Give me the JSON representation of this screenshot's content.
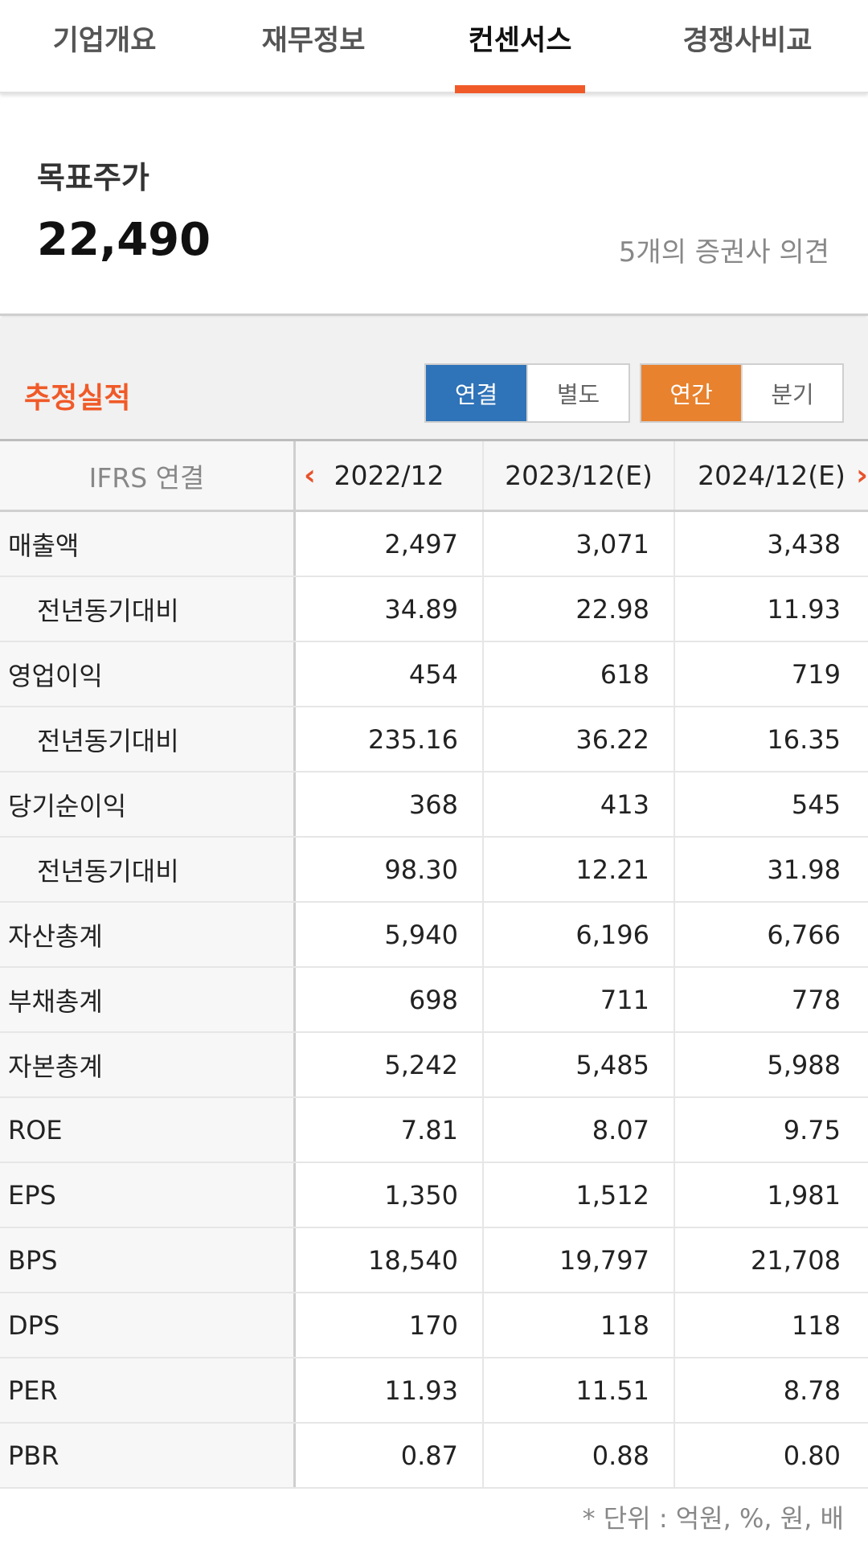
{
  "tabs": [
    {
      "label": "기업개요"
    },
    {
      "label": "재무정보"
    },
    {
      "label": "컨센서스",
      "active": true
    },
    {
      "label": "경쟁사비교"
    }
  ],
  "target": {
    "label": "목표주가",
    "value": "22,490",
    "opinion": "5개의 증권사 의견"
  },
  "estimate": {
    "title": "추정실적",
    "toggle_basis": [
      "연결",
      "별도"
    ],
    "toggle_period": [
      "연간",
      "분기"
    ],
    "selected_basis": "연결",
    "selected_period": "연간"
  },
  "table": {
    "header": {
      "label": "IFRS 연결",
      "cols": [
        "2022/12",
        "2023/12(E)",
        "2024/12(E)"
      ]
    },
    "rows": [
      {
        "label": "매출액",
        "values": [
          "2,497",
          "3,071",
          "3,438"
        ]
      },
      {
        "label": "전년동기대비",
        "values": [
          "34.89",
          "22.98",
          "11.93"
        ]
      },
      {
        "label": "영업이익",
        "values": [
          "454",
          "618",
          "719"
        ]
      },
      {
        "label": "전년동기대비",
        "values": [
          "235.16",
          "36.22",
          "16.35"
        ]
      },
      {
        "label": "당기순이익",
        "values": [
          "368",
          "413",
          "545"
        ]
      },
      {
        "label": "전년동기대비",
        "values": [
          "98.30",
          "12.21",
          "31.98"
        ]
      },
      {
        "label": "자산총계",
        "values": [
          "5,940",
          "6,196",
          "6,766"
        ]
      },
      {
        "label": "부채총계",
        "values": [
          "698",
          "711",
          "778"
        ]
      },
      {
        "label": "자본총계",
        "values": [
          "5,242",
          "5,485",
          "5,988"
        ]
      },
      {
        "label": "ROE",
        "values": [
          "7.81",
          "8.07",
          "9.75"
        ]
      },
      {
        "label": "EPS",
        "values": [
          "1,350",
          "1,512",
          "1,981"
        ]
      },
      {
        "label": "BPS",
        "values": [
          "18,540",
          "19,797",
          "21,708"
        ]
      },
      {
        "label": "DPS",
        "values": [
          "170",
          "118",
          "118"
        ]
      },
      {
        "label": "PER",
        "values": [
          "11.93",
          "11.51",
          "8.78"
        ]
      },
      {
        "label": "PBR",
        "values": [
          "0.87",
          "0.88",
          "0.80"
        ]
      }
    ]
  },
  "unit_note": "* 단위 : 억원, %, 원, 배"
}
